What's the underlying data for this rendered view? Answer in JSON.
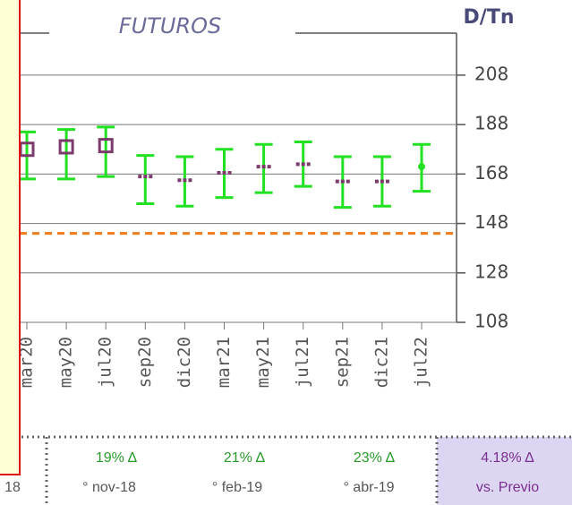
{
  "chart_data": {
    "type": "errorbar",
    "title": "FUTUROS",
    "y_label": "D/Tn",
    "categories": [
      "mar20",
      "may20",
      "jul20",
      "sep20",
      "dic20",
      "mar21",
      "may21",
      "jul21",
      "sep21",
      "dic21",
      "jul22"
    ],
    "values": [
      178,
      179,
      179.5,
      167,
      165.5,
      168.5,
      171,
      172,
      165,
      165,
      171
    ],
    "low": [
      166,
      166,
      167,
      156,
      155,
      158.5,
      160.5,
      163,
      154.5,
      155,
      161
    ],
    "high": [
      185,
      186,
      187,
      175.5,
      175,
      178,
      180,
      181,
      175,
      175,
      180
    ],
    "markers": [
      "square",
      "square",
      "square",
      "dash",
      "dash",
      "dash",
      "dash",
      "dash",
      "dash",
      "dash",
      "dot"
    ],
    "marker_color": "#7b3b6b",
    "bar_color": "#22e022",
    "reference_line": 144,
    "reference_color": "#f07c1e",
    "ylim": [
      108,
      225
    ],
    "yticks": [
      108,
      128,
      148,
      168,
      188,
      208
    ],
    "grid": true
  },
  "footer": {
    "left": "18",
    "cells": [
      {
        "top": "19% Δ",
        "bottom": "° nov-18"
      },
      {
        "top": "21% Δ",
        "bottom": "° feb-19"
      },
      {
        "top": "23% Δ",
        "bottom": "° abr-19"
      }
    ],
    "summary": {
      "top": "4.18% Δ",
      "bottom": "vs. Previo"
    }
  }
}
